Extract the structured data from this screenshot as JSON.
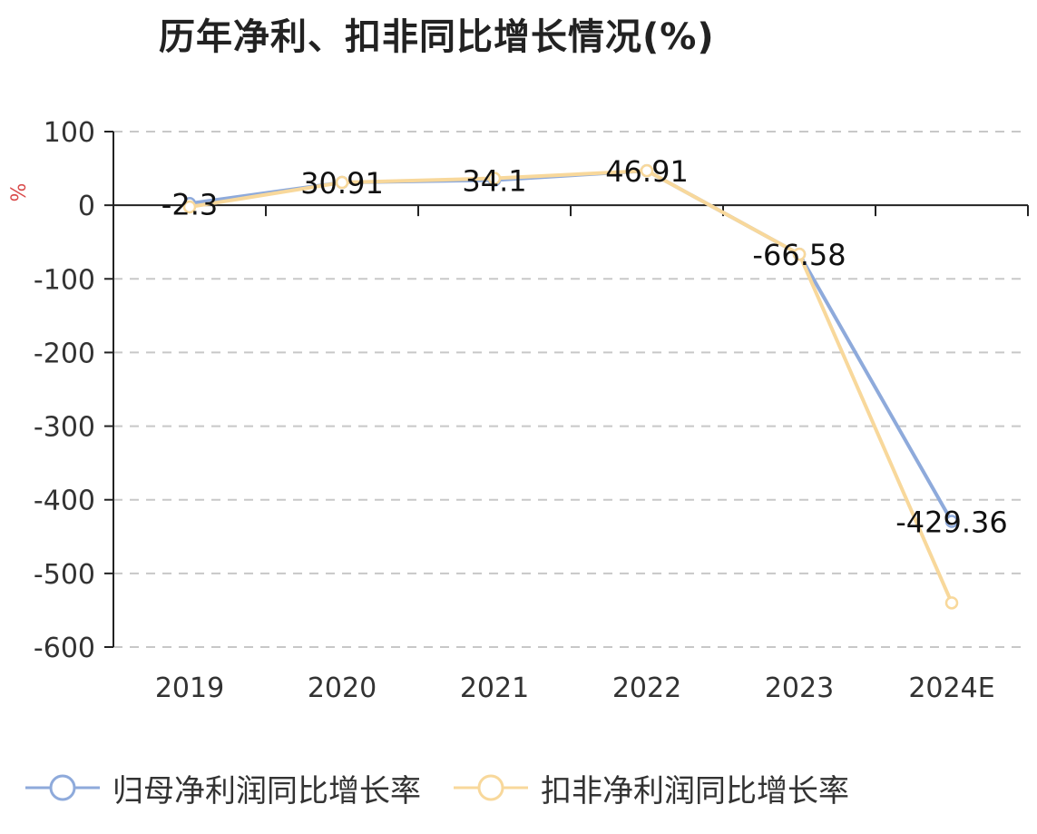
{
  "title": "历年净利、扣非同比增长情况(%)",
  "colors": {
    "series1": "#8eaadb",
    "series2": "#f8d89b",
    "axis": "#222222",
    "grid": "#c8c8c8",
    "ylabel": "#d94a4a"
  },
  "chart_data": {
    "type": "line",
    "categories": [
      "2019",
      "2020",
      "2021",
      "2022",
      "2023",
      "2024E"
    ],
    "ylabel": "%",
    "ylim": [
      -600,
      100
    ],
    "yticks": [
      "100",
      "0",
      "-100",
      "-200",
      "-300",
      "-400",
      "-500",
      "-600"
    ],
    "grid": true,
    "legend_position": "bottom",
    "series": [
      {
        "name": "归母净利润同比增长率",
        "values": [
          2.3,
          30.91,
          34.1,
          46.91,
          -66.58,
          -429.36
        ]
      },
      {
        "name": "扣非净利润同比增长率",
        "values": [
          -2.3,
          30.91,
          36.5,
          46.91,
          -66.58,
          -540.0
        ]
      }
    ],
    "data_labels": [
      "-2.3",
      "30.91",
      "34.1",
      "46.91",
      "-66.58",
      "-429.36"
    ]
  }
}
